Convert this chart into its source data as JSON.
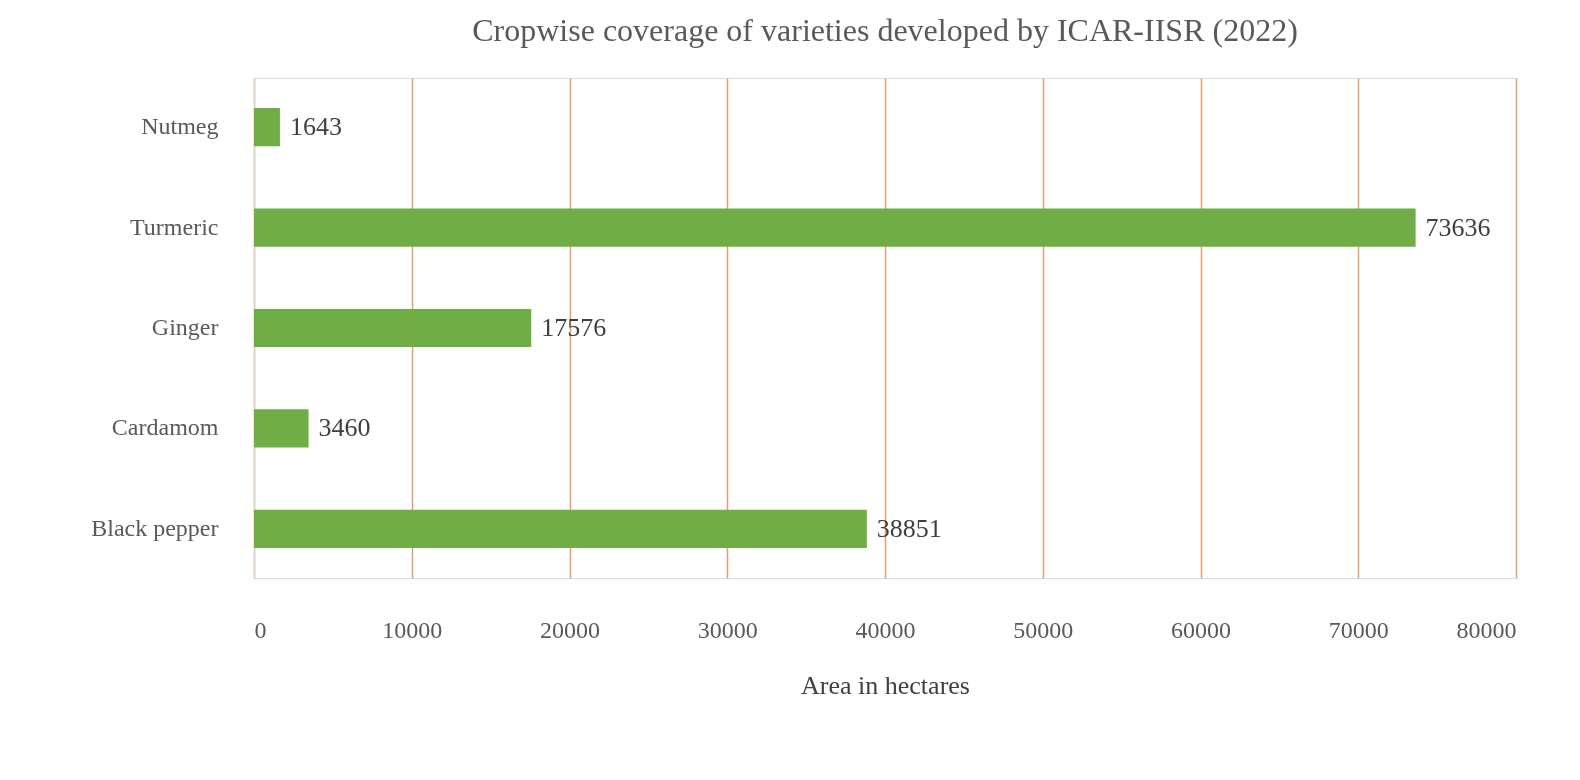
{
  "chart_data": {
    "type": "bar",
    "orientation": "horizontal",
    "title": "Cropwise coverage of varieties developed by ICAR-IISR (2022)",
    "xlabel": "Area in hectares",
    "categories": [
      "Nutmeg",
      "Turmeric",
      "Ginger",
      "Cardamom",
      "Black pepper"
    ],
    "values": [
      1643,
      73636,
      17576,
      3460,
      38851
    ],
    "color": "#70ad47",
    "xlim": [
      0,
      80000
    ],
    "xticks": [
      0,
      10000,
      20000,
      30000,
      40000,
      50000,
      60000,
      70000,
      80000
    ],
    "grid": "x",
    "data_labels": true
  }
}
